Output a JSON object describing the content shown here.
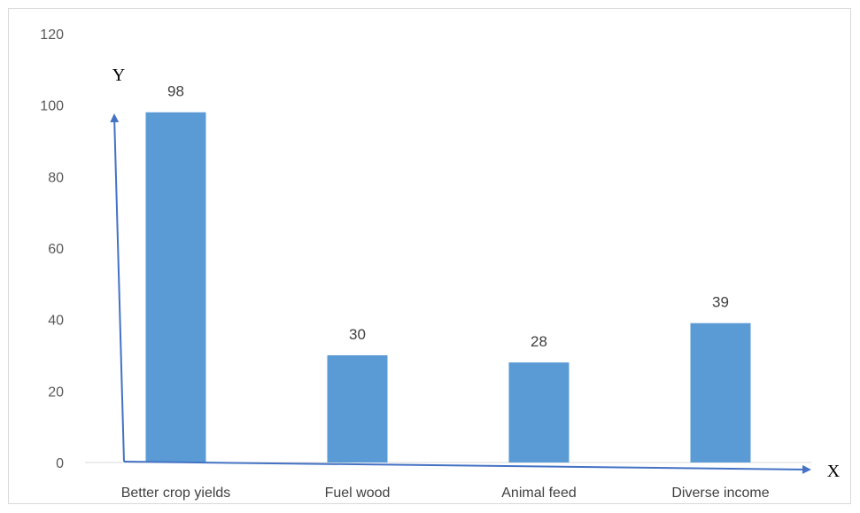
{
  "chart_data": {
    "type": "bar",
    "categories": [
      "Better crop yields",
      "Fuel wood",
      "Animal feed",
      "Diverse income"
    ],
    "values": [
      98,
      30,
      28,
      39
    ],
    "title": "",
    "xlabel": "X",
    "ylabel": "Y",
    "ylim": [
      0,
      120
    ],
    "yticks": [
      0,
      20,
      40,
      60,
      80,
      100,
      120
    ],
    "grid": false,
    "data_labels": true,
    "bar_color": "#5b9bd5",
    "arrow_color": "#4472c4"
  }
}
